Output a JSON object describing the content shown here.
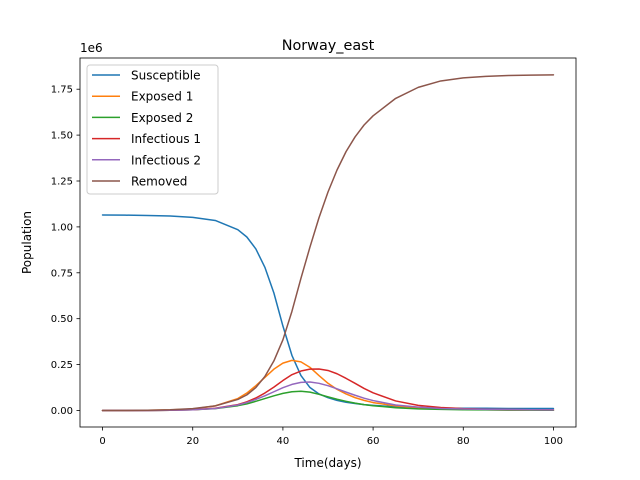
{
  "chart_data": {
    "type": "line",
    "title": "Norway_east",
    "xlabel": "Time(days)",
    "ylabel": "Population",
    "y_offset_label": "1e6",
    "xlim": [
      -5,
      105
    ],
    "ylim": [
      -0.09,
      1.92
    ],
    "x_ticks": [
      0,
      20,
      40,
      60,
      80,
      100
    ],
    "x_tick_labels": [
      "0",
      "20",
      "40",
      "60",
      "80",
      "100"
    ],
    "y_ticks": [
      0.0,
      0.25,
      0.5,
      0.75,
      1.0,
      1.25,
      1.5,
      1.75
    ],
    "y_tick_labels": [
      "0.00",
      "0.25",
      "0.50",
      "0.75",
      "1.00",
      "1.25",
      "1.50",
      "1.75"
    ],
    "grid": false,
    "legend_position": "upper-left",
    "x": [
      0,
      5,
      10,
      15,
      20,
      25,
      30,
      32,
      34,
      36,
      38,
      40,
      42,
      44,
      46,
      48,
      50,
      52,
      54,
      56,
      58,
      60,
      65,
      70,
      75,
      80,
      85,
      90,
      95,
      100
    ],
    "series": [
      {
        "name": "Susceptible",
        "color": "#1f77b4",
        "values": [
          1.065,
          1.064,
          1.062,
          1.059,
          1.052,
          1.035,
          0.985,
          0.945,
          0.88,
          0.78,
          0.64,
          0.46,
          0.3,
          0.19,
          0.125,
          0.09,
          0.07,
          0.055,
          0.045,
          0.038,
          0.032,
          0.028,
          0.02,
          0.016,
          0.013,
          0.012,
          0.012,
          0.011,
          0.011,
          0.011
        ]
      },
      {
        "name": "Exposed 1",
        "color": "#ff7f0e",
        "values": [
          0.0,
          0.0,
          0.001,
          0.003,
          0.008,
          0.025,
          0.065,
          0.095,
          0.135,
          0.18,
          0.225,
          0.258,
          0.273,
          0.265,
          0.235,
          0.19,
          0.148,
          0.115,
          0.09,
          0.07,
          0.055,
          0.043,
          0.025,
          0.015,
          0.009,
          0.006,
          0.004,
          0.003,
          0.002,
          0.002
        ]
      },
      {
        "name": "Exposed 2",
        "color": "#2ca02c",
        "values": [
          0.0,
          0.0,
          0.0,
          0.001,
          0.004,
          0.01,
          0.026,
          0.036,
          0.05,
          0.065,
          0.08,
          0.093,
          0.102,
          0.105,
          0.1,
          0.088,
          0.074,
          0.061,
          0.05,
          0.04,
          0.032,
          0.026,
          0.015,
          0.009,
          0.006,
          0.004,
          0.003,
          0.002,
          0.002,
          0.001
        ]
      },
      {
        "name": "Infectious 1",
        "color": "#d62728",
        "values": [
          0.0,
          0.0,
          0.0,
          0.001,
          0.004,
          0.012,
          0.032,
          0.047,
          0.068,
          0.095,
          0.127,
          0.163,
          0.195,
          0.215,
          0.225,
          0.226,
          0.218,
          0.2,
          0.175,
          0.148,
          0.12,
          0.096,
          0.052,
          0.028,
          0.016,
          0.01,
          0.007,
          0.005,
          0.004,
          0.003
        ]
      },
      {
        "name": "Infectious 2",
        "color": "#9467bd",
        "values": [
          0.0,
          0.0,
          0.0,
          0.001,
          0.004,
          0.011,
          0.03,
          0.043,
          0.06,
          0.08,
          0.102,
          0.124,
          0.142,
          0.153,
          0.155,
          0.148,
          0.135,
          0.118,
          0.1,
          0.083,
          0.067,
          0.054,
          0.03,
          0.018,
          0.011,
          0.008,
          0.006,
          0.005,
          0.004,
          0.003
        ]
      },
      {
        "name": "Removed",
        "color": "#8c564b",
        "values": [
          0.0,
          0.0,
          0.001,
          0.004,
          0.01,
          0.025,
          0.06,
          0.085,
          0.125,
          0.185,
          0.27,
          0.385,
          0.54,
          0.72,
          0.89,
          1.05,
          1.19,
          1.31,
          1.41,
          1.49,
          1.555,
          1.605,
          1.7,
          1.76,
          1.795,
          1.812,
          1.82,
          1.825,
          1.827,
          1.828
        ]
      }
    ]
  }
}
